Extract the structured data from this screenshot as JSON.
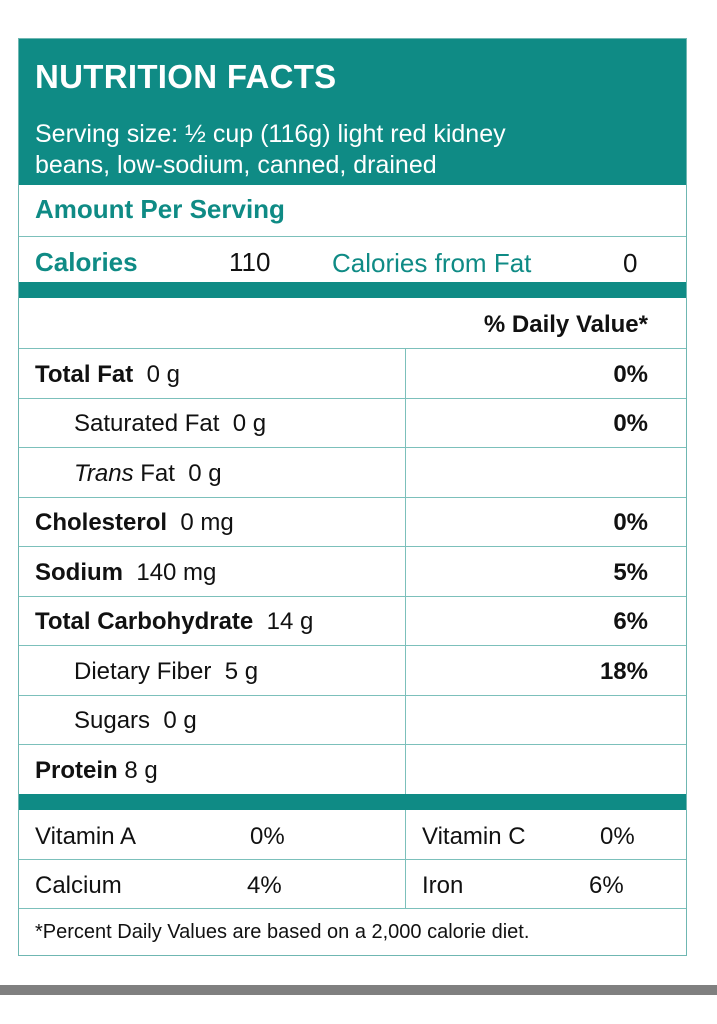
{
  "header": {
    "title": "NUTRITION FACTS",
    "serving_line1": "Serving size: ½ cup (116g) light red kidney",
    "serving_line2": "beans, low-sodium, canned, drained"
  },
  "amount_per_serving": "Amount Per Serving",
  "calories": {
    "label": "Calories",
    "value": "110",
    "from_fat_label": "Calories from Fat",
    "from_fat_value": "0"
  },
  "daily_value_header": "% Daily Value*",
  "nutrients": [
    {
      "name": "Total Fat",
      "amount": "0 g",
      "dv": "0%"
    },
    {
      "name": "Saturated Fat",
      "amount": "0 g",
      "dv": "0%"
    },
    {
      "name_italic": "Trans",
      "name": "Fat",
      "amount": "0 g",
      "dv": ""
    },
    {
      "name": "Cholesterol",
      "amount": "0 mg",
      "dv": "0%"
    },
    {
      "name": "Sodium",
      "amount": "140 mg",
      "dv": "5%"
    },
    {
      "name": "Total Carbohydrate",
      "amount": "14 g",
      "dv": "6%"
    },
    {
      "name": "Dietary Fiber",
      "amount": "5 g",
      "dv": "18%"
    },
    {
      "name": "Sugars",
      "amount": "0 g",
      "dv": ""
    },
    {
      "name": "Protein",
      "amount": "8 g",
      "dv": ""
    }
  ],
  "vitamins": [
    {
      "name": "Vitamin A",
      "value": "0%"
    },
    {
      "name": "Vitamin C",
      "value": "0%"
    },
    {
      "name": "Calcium",
      "value": "4%"
    },
    {
      "name": "Iron",
      "value": "6%"
    }
  ],
  "footnote": "*Percent Daily Values are based on a 2,000 calorie diet.",
  "colors": {
    "accent": "#0f8b85",
    "rule": "#7cc0bb"
  }
}
